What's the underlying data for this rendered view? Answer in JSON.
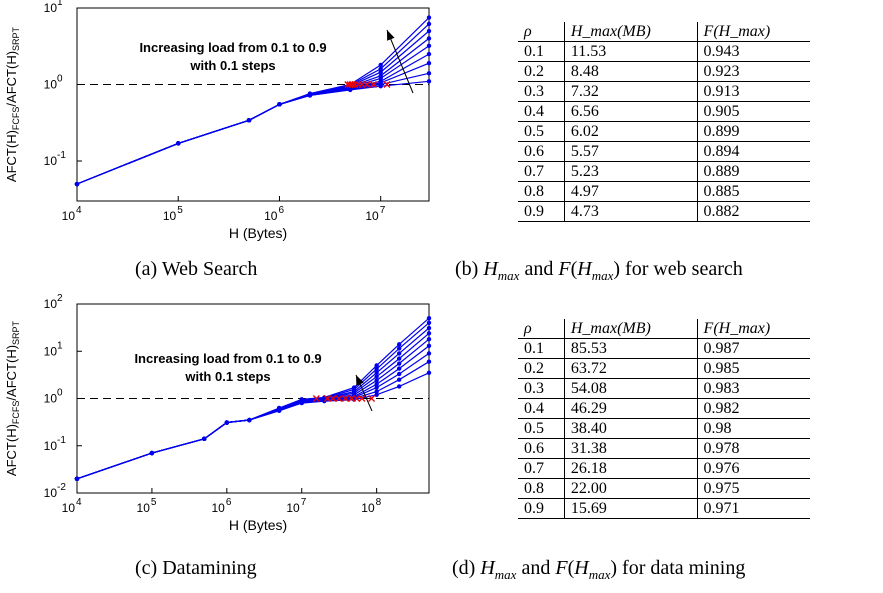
{
  "charts": {
    "a": {
      "xlabel": "H (Bytes)",
      "ylabel": "AFCT(H)",
      "ylabel_sub1": "FCFS",
      "ylabel_mid": "/AFCT(H)",
      "ylabel_sub2": "SRPT",
      "xticks": [
        "10",
        "10",
        "10",
        "10"
      ],
      "xtick_exp": [
        "4",
        "5",
        "6",
        "7"
      ],
      "yticks": [
        "10",
        "10",
        "10"
      ],
      "ytick_exp": [
        "-1",
        "0",
        "1"
      ],
      "annotation_line1": "Increasing load from 0.1 to 0.9",
      "annotation_line2": "with 0.1 steps"
    },
    "c": {
      "xlabel": "H (Bytes)",
      "ylabel": "AFCT(H)",
      "ylabel_sub1": "FCFS",
      "ylabel_mid": "/AFCT(H)",
      "ylabel_sub2": "SRPT",
      "xticks": [
        "10",
        "10",
        "10",
        "10",
        "10"
      ],
      "xtick_exp": [
        "4",
        "5",
        "6",
        "7",
        "8"
      ],
      "yticks": [
        "10",
        "10",
        "10",
        "10",
        "10"
      ],
      "ytick_exp": [
        "-2",
        "-1",
        "0",
        "1",
        "2"
      ],
      "annotation_line1": "Increasing load from 0.1 to 0.9",
      "annotation_line2": "with 0.1 steps"
    }
  },
  "chart_data": [
    {
      "type": "line",
      "panel": "a",
      "xscale": "log",
      "yscale": "log",
      "xlim": [
        10000,
        30000000
      ],
      "ylim": [
        0.03,
        10
      ],
      "xlabel": "H (Bytes)",
      "ylabel": "AFCT(H)FCFS/AFCT(H)SRPT",
      "reference_line": 1,
      "series": [
        {
          "x": [
            10000,
            100000,
            500000,
            1000000,
            2000000,
            5000000,
            10000000,
            30000000
          ],
          "values": [
            0.05,
            0.17,
            0.34,
            0.55,
            0.72,
            0.85,
            0.95,
            1.1
          ]
        },
        {
          "x": [
            10000,
            100000,
            500000,
            1000000,
            2000000,
            5000000,
            10000000,
            30000000
          ],
          "values": [
            0.05,
            0.17,
            0.34,
            0.55,
            0.72,
            0.86,
            1.0,
            1.4
          ]
        },
        {
          "x": [
            10000,
            100000,
            500000,
            1000000,
            2000000,
            5000000,
            10000000,
            30000000
          ],
          "values": [
            0.05,
            0.17,
            0.34,
            0.55,
            0.73,
            0.88,
            1.05,
            1.9
          ]
        },
        {
          "x": [
            10000,
            100000,
            500000,
            1000000,
            2000000,
            5000000,
            10000000,
            30000000
          ],
          "values": [
            0.05,
            0.17,
            0.34,
            0.55,
            0.73,
            0.9,
            1.1,
            2.5
          ]
        },
        {
          "x": [
            10000,
            100000,
            500000,
            1000000,
            2000000,
            5000000,
            10000000,
            30000000
          ],
          "values": [
            0.05,
            0.17,
            0.34,
            0.55,
            0.74,
            0.92,
            1.2,
            3.2
          ]
        },
        {
          "x": [
            10000,
            100000,
            500000,
            1000000,
            2000000,
            5000000,
            10000000,
            30000000
          ],
          "values": [
            0.05,
            0.17,
            0.34,
            0.55,
            0.74,
            0.94,
            1.3,
            4.0
          ]
        },
        {
          "x": [
            10000,
            100000,
            500000,
            1000000,
            2000000,
            5000000,
            10000000,
            30000000
          ],
          "values": [
            0.05,
            0.17,
            0.34,
            0.55,
            0.75,
            0.96,
            1.45,
            5.0
          ]
        },
        {
          "x": [
            10000,
            100000,
            500000,
            1000000,
            2000000,
            5000000,
            10000000,
            30000000
          ],
          "values": [
            0.05,
            0.17,
            0.34,
            0.55,
            0.75,
            0.98,
            1.6,
            6.2
          ]
        },
        {
          "x": [
            10000,
            100000,
            500000,
            1000000,
            2000000,
            5000000,
            10000000,
            30000000
          ],
          "values": [
            0.05,
            0.17,
            0.34,
            0.55,
            0.76,
            1.0,
            1.8,
            7.5
          ]
        }
      ],
      "crossings_x": [
        11530000,
        8480000,
        7320000,
        6560000,
        6020000,
        5570000,
        5230000,
        4970000,
        4730000
      ]
    },
    {
      "type": "line",
      "panel": "c",
      "xscale": "log",
      "yscale": "log",
      "xlim": [
        10000,
        500000000
      ],
      "ylim": [
        0.01,
        100
      ],
      "xlabel": "H (Bytes)",
      "ylabel": "AFCT(H)FCFS/AFCT(H)SRPT",
      "reference_line": 1,
      "series": [
        {
          "x": [
            10000,
            100000,
            500000,
            1000000,
            2000000,
            5000000,
            10000000,
            20000000,
            50000000,
            100000000,
            200000000,
            500000000
          ],
          "values": [
            0.02,
            0.07,
            0.14,
            0.31,
            0.35,
            0.55,
            0.8,
            0.88,
            0.95,
            1.2,
            1.8,
            3.5
          ]
        },
        {
          "x": [
            10000,
            100000,
            500000,
            1000000,
            2000000,
            5000000,
            10000000,
            20000000,
            50000000,
            100000000,
            200000000,
            500000000
          ],
          "values": [
            0.02,
            0.07,
            0.14,
            0.31,
            0.35,
            0.56,
            0.82,
            0.9,
            1.0,
            1.4,
            2.5,
            6.0
          ]
        },
        {
          "x": [
            10000,
            100000,
            500000,
            1000000,
            2000000,
            5000000,
            10000000,
            20000000,
            50000000,
            100000000,
            200000000,
            500000000
          ],
          "values": [
            0.02,
            0.07,
            0.14,
            0.31,
            0.35,
            0.57,
            0.84,
            0.92,
            1.05,
            1.7,
            3.3,
            9.0
          ]
        },
        {
          "x": [
            10000,
            100000,
            500000,
            1000000,
            2000000,
            5000000,
            10000000,
            20000000,
            50000000,
            100000000,
            200000000,
            500000000
          ],
          "values": [
            0.02,
            0.07,
            0.14,
            0.31,
            0.35,
            0.58,
            0.86,
            0.94,
            1.1,
            2.0,
            4.3,
            13
          ]
        },
        {
          "x": [
            10000,
            100000,
            500000,
            1000000,
            2000000,
            5000000,
            10000000,
            20000000,
            50000000,
            100000000,
            200000000,
            500000000
          ],
          "values": [
            0.02,
            0.07,
            0.14,
            0.31,
            0.35,
            0.59,
            0.88,
            0.96,
            1.2,
            2.4,
            5.5,
            18
          ]
        },
        {
          "x": [
            10000,
            100000,
            500000,
            1000000,
            2000000,
            5000000,
            10000000,
            20000000,
            50000000,
            100000000,
            200000000,
            500000000
          ],
          "values": [
            0.02,
            0.07,
            0.14,
            0.31,
            0.35,
            0.6,
            0.9,
            0.98,
            1.3,
            2.9,
            7.0,
            24
          ]
        },
        {
          "x": [
            10000,
            100000,
            500000,
            1000000,
            2000000,
            5000000,
            10000000,
            20000000,
            50000000,
            100000000,
            200000000,
            500000000
          ],
          "values": [
            0.02,
            0.07,
            0.14,
            0.31,
            0.35,
            0.61,
            0.92,
            1.0,
            1.4,
            3.5,
            9.0,
            31
          ]
        },
        {
          "x": [
            10000,
            100000,
            500000,
            1000000,
            2000000,
            5000000,
            10000000,
            20000000,
            50000000,
            100000000,
            200000000,
            500000000
          ],
          "values": [
            0.02,
            0.07,
            0.14,
            0.31,
            0.35,
            0.62,
            0.94,
            1.02,
            1.55,
            4.2,
            11.5,
            40
          ]
        },
        {
          "x": [
            10000,
            100000,
            500000,
            1000000,
            2000000,
            5000000,
            10000000,
            20000000,
            50000000,
            100000000,
            200000000,
            500000000
          ],
          "values": [
            0.02,
            0.07,
            0.14,
            0.31,
            0.35,
            0.63,
            0.96,
            1.05,
            1.7,
            5.0,
            14,
            50
          ]
        }
      ],
      "crossings_x": [
        85530000,
        63720000,
        54080000,
        46290000,
        38400000,
        31380000,
        26180000,
        22000000,
        15690000
      ]
    }
  ],
  "table_b": {
    "headers": [
      "ρ",
      "H_max(MB)",
      "F(H_max)"
    ],
    "rows": [
      [
        "0.1",
        "11.53",
        "0.943"
      ],
      [
        "0.2",
        "8.48",
        "0.923"
      ],
      [
        "0.3",
        "7.32",
        "0.913"
      ],
      [
        "0.4",
        "6.56",
        "0.905"
      ],
      [
        "0.5",
        "6.02",
        "0.899"
      ],
      [
        "0.6",
        "5.57",
        "0.894"
      ],
      [
        "0.7",
        "5.23",
        "0.889"
      ],
      [
        "0.8",
        "4.97",
        "0.885"
      ],
      [
        "0.9",
        "4.73",
        "0.882"
      ]
    ]
  },
  "table_d": {
    "headers": [
      "ρ",
      "H_max(MB)",
      "F(H_max)"
    ],
    "rows": [
      [
        "0.1",
        "85.53",
        "0.987"
      ],
      [
        "0.2",
        "63.72",
        "0.985"
      ],
      [
        "0.3",
        "54.08",
        "0.983"
      ],
      [
        "0.4",
        "46.29",
        "0.982"
      ],
      [
        "0.5",
        "38.40",
        "0.98"
      ],
      [
        "0.6",
        "31.38",
        "0.978"
      ],
      [
        "0.7",
        "26.18",
        "0.976"
      ],
      [
        "0.8",
        "22.00",
        "0.975"
      ],
      [
        "0.9",
        "15.69",
        "0.971"
      ]
    ]
  },
  "captions": {
    "a": "(a) Web Search",
    "b_prefix": "(b) ",
    "b_mid": " and ",
    "b_suffix": " for web search",
    "c": "(c) Datamining",
    "d_prefix": "(d) ",
    "d_mid": " and ",
    "d_suffix": " for data mining",
    "hmax_H": "H",
    "hmax_sub": "max",
    "f_F": "F",
    "f_open": "(",
    "f_close": ")"
  },
  "colors": {
    "line": "#0000ee",
    "marker_red": "#ee0000",
    "axis": "#000000",
    "dash": "#000000"
  }
}
